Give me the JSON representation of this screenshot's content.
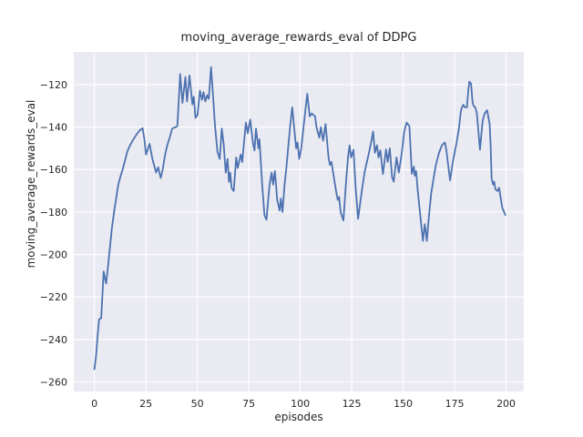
{
  "chart_data": {
    "type": "line",
    "title": "moving_average_rewards_eval of DDPG",
    "xlabel": "episodes",
    "ylabel": "moving_average_rewards_eval",
    "xticks": [
      0,
      25,
      50,
      75,
      100,
      125,
      150,
      175,
      200
    ],
    "yticks": [
      -120,
      -140,
      -160,
      -180,
      -200,
      -220,
      -240,
      -260
    ],
    "xlim": [
      -10,
      208.6
    ],
    "ylim": [
      -264.5,
      -104.6
    ],
    "grid": true,
    "legend": "none",
    "plot_bg_color": "#eaeaf2",
    "grid_color": "#ffffff",
    "text_color": "#262626",
    "series": [
      {
        "name": "moving_average_rewards_eval",
        "color": "#4c72b0",
        "points": [
          [
            0,
            -254
          ],
          [
            0.8,
            -248
          ],
          [
            1.6,
            -238
          ],
          [
            2.3,
            -230.5
          ],
          [
            3.3,
            -230
          ],
          [
            4.5,
            -208
          ],
          [
            5.7,
            -213.7
          ],
          [
            6.6,
            -206
          ],
          [
            7.2,
            -200
          ],
          [
            8.6,
            -187
          ],
          [
            9.8,
            -178.6
          ],
          [
            11.6,
            -167.2
          ],
          [
            12.8,
            -162.9
          ],
          [
            13.8,
            -159.7
          ],
          [
            14.9,
            -155.7
          ],
          [
            16,
            -151.4
          ],
          [
            17.5,
            -148.3
          ],
          [
            19,
            -145.7
          ],
          [
            20.4,
            -143.6
          ],
          [
            21.9,
            -141.7
          ],
          [
            23.4,
            -140.5
          ],
          [
            24.3,
            -145.7
          ],
          [
            25.1,
            -152.9
          ],
          [
            26.8,
            -147.9
          ],
          [
            28.2,
            -155
          ],
          [
            29.3,
            -159
          ],
          [
            30,
            -161.4
          ],
          [
            31,
            -158.9
          ],
          [
            32.2,
            -164
          ],
          [
            33.2,
            -160
          ],
          [
            34.4,
            -152.9
          ],
          [
            35.4,
            -148.6
          ],
          [
            36.6,
            -145
          ],
          [
            37.8,
            -140.7
          ],
          [
            39.5,
            -140
          ],
          [
            40.3,
            -139.5
          ],
          [
            41,
            -127
          ],
          [
            41.7,
            -115
          ],
          [
            42.8,
            -128.6
          ],
          [
            44.2,
            -116.4
          ],
          [
            45,
            -127.9
          ],
          [
            46.2,
            -115.7
          ],
          [
            47.6,
            -129.3
          ],
          [
            48.3,
            -125.7
          ],
          [
            49.1,
            -135.7
          ],
          [
            50.1,
            -134.3
          ],
          [
            51.3,
            -122.9
          ],
          [
            52.3,
            -127.2
          ],
          [
            53,
            -123.6
          ],
          [
            53.9,
            -127.9
          ],
          [
            54.8,
            -125
          ],
          [
            55.6,
            -126.7
          ],
          [
            56.7,
            -111.7
          ],
          [
            57.9,
            -128.6
          ],
          [
            58.6,
            -139.3
          ],
          [
            59.8,
            -151.5
          ],
          [
            60.9,
            -155
          ],
          [
            61.9,
            -140.7
          ],
          [
            62.8,
            -147.9
          ],
          [
            63.8,
            -161.5
          ],
          [
            64.7,
            -155
          ],
          [
            65.4,
            -165.8
          ],
          [
            66,
            -161.5
          ],
          [
            66.7,
            -168.7
          ],
          [
            67.7,
            -170.1
          ],
          [
            68.9,
            -154.3
          ],
          [
            69.6,
            -159.3
          ],
          [
            71.1,
            -152.9
          ],
          [
            71.8,
            -156.5
          ],
          [
            73.6,
            -137.9
          ],
          [
            74.5,
            -142.9
          ],
          [
            75.7,
            -136.5
          ],
          [
            77,
            -147.2
          ],
          [
            77.8,
            -151
          ],
          [
            78.5,
            -140.7
          ],
          [
            79.7,
            -150
          ],
          [
            80.2,
            -145.7
          ],
          [
            81.5,
            -167
          ],
          [
            82.6,
            -181.4
          ],
          [
            83.6,
            -183.6
          ],
          [
            85.1,
            -167.1
          ],
          [
            86.1,
            -161.4
          ],
          [
            86.8,
            -167.1
          ],
          [
            87.7,
            -160.7
          ],
          [
            88.8,
            -174.3
          ],
          [
            90,
            -179.3
          ],
          [
            90.6,
            -173.6
          ],
          [
            91.4,
            -180
          ],
          [
            92.4,
            -167.1
          ],
          [
            93.2,
            -160
          ],
          [
            94.9,
            -141.4
          ],
          [
            96.1,
            -130.7
          ],
          [
            97.3,
            -142.9
          ],
          [
            98,
            -150
          ],
          [
            98.7,
            -147.2
          ],
          [
            99.5,
            -155
          ],
          [
            100.5,
            -150
          ],
          [
            101.7,
            -139.3
          ],
          [
            103.4,
            -124.3
          ],
          [
            104.6,
            -135
          ],
          [
            105.6,
            -133.6
          ],
          [
            107.2,
            -135
          ],
          [
            107.9,
            -140
          ],
          [
            109.3,
            -145
          ],
          [
            110,
            -140
          ],
          [
            111.1,
            -146.4
          ],
          [
            112.3,
            -138.6
          ],
          [
            113.8,
            -155
          ],
          [
            114.5,
            -157.9
          ],
          [
            115.2,
            -156.4
          ],
          [
            116,
            -161.4
          ],
          [
            117.4,
            -170
          ],
          [
            118.2,
            -174.3
          ],
          [
            118.9,
            -172.9
          ],
          [
            119.6,
            -180
          ],
          [
            121,
            -184
          ],
          [
            122.3,
            -165
          ],
          [
            123.3,
            -153.6
          ],
          [
            124,
            -148.6
          ],
          [
            124.7,
            -154.3
          ],
          [
            125.9,
            -150.7
          ],
          [
            126.9,
            -168.6
          ],
          [
            128.1,
            -183.2
          ],
          [
            129.9,
            -170
          ],
          [
            131.4,
            -160.7
          ],
          [
            132.9,
            -154.3
          ],
          [
            134.3,
            -147.9
          ],
          [
            135.4,
            -142.1
          ],
          [
            136.3,
            -152.1
          ],
          [
            137.3,
            -148.6
          ],
          [
            138,
            -154.3
          ],
          [
            138.9,
            -151
          ],
          [
            140.2,
            -162.1
          ],
          [
            141.7,
            -150.5
          ],
          [
            142.5,
            -156.4
          ],
          [
            143.5,
            -150
          ],
          [
            144.6,
            -163.6
          ],
          [
            145.4,
            -165.7
          ],
          [
            146.8,
            -154.3
          ],
          [
            147.9,
            -161.4
          ],
          [
            148.8,
            -155.7
          ],
          [
            149.8,
            -148.6
          ],
          [
            150.5,
            -142.1
          ],
          [
            151.7,
            -137.9
          ],
          [
            153,
            -139.5
          ],
          [
            154.2,
            -162
          ],
          [
            155.2,
            -158.6
          ],
          [
            155.6,
            -162.9
          ],
          [
            156.3,
            -160.7
          ],
          [
            157.1,
            -170
          ],
          [
            158.6,
            -184.3
          ],
          [
            159.6,
            -193.6
          ],
          [
            160.5,
            -185.7
          ],
          [
            161.5,
            -193.6
          ],
          [
            162.2,
            -185.7
          ],
          [
            163,
            -177.1
          ],
          [
            163.7,
            -170.7
          ],
          [
            164.9,
            -163.6
          ],
          [
            165.9,
            -157.9
          ],
          [
            167.4,
            -152.2
          ],
          [
            168.8,
            -148.6
          ],
          [
            170.3,
            -147.2
          ],
          [
            171,
            -150.8
          ],
          [
            171.8,
            -157.2
          ],
          [
            172.8,
            -165.1
          ],
          [
            174,
            -157.2
          ],
          [
            175.4,
            -150
          ],
          [
            176,
            -147.2
          ],
          [
            177.2,
            -140
          ],
          [
            177.8,
            -134.3
          ],
          [
            178.3,
            -131.4
          ],
          [
            179.2,
            -129.5
          ],
          [
            180,
            -130.7
          ],
          [
            181,
            -130.7
          ],
          [
            181.7,
            -122
          ],
          [
            182.2,
            -118.6
          ],
          [
            183,
            -119.5
          ],
          [
            183.7,
            -128
          ],
          [
            184.2,
            -130
          ],
          [
            185,
            -130.7
          ],
          [
            185.8,
            -133.6
          ],
          [
            186.4,
            -140
          ],
          [
            187.3,
            -150.7
          ],
          [
            188.6,
            -137.1
          ],
          [
            189.6,
            -133.6
          ],
          [
            190.8,
            -132.1
          ],
          [
            192,
            -138.6
          ],
          [
            192.5,
            -148.6
          ],
          [
            193,
            -164.3
          ],
          [
            193.7,
            -167.1
          ],
          [
            194.2,
            -165.7
          ],
          [
            194.8,
            -169.3
          ],
          [
            195.9,
            -170.1
          ],
          [
            196.6,
            -168.6
          ],
          [
            198.1,
            -177.9
          ],
          [
            199.6,
            -181.4
          ]
        ]
      }
    ]
  }
}
